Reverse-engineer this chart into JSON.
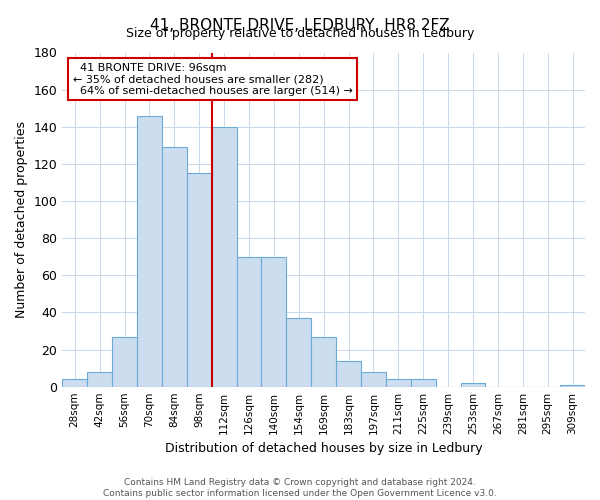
{
  "title": "41, BRONTE DRIVE, LEDBURY, HR8 2FZ",
  "subtitle": "Size of property relative to detached houses in Ledbury",
  "xlabel": "Distribution of detached houses by size in Ledbury",
  "ylabel": "Number of detached properties",
  "bar_labels": [
    "28sqm",
    "42sqm",
    "56sqm",
    "70sqm",
    "84sqm",
    "98sqm",
    "112sqm",
    "126sqm",
    "140sqm",
    "154sqm",
    "169sqm",
    "183sqm",
    "197sqm",
    "211sqm",
    "225sqm",
    "239sqm",
    "253sqm",
    "267sqm",
    "281sqm",
    "295sqm",
    "309sqm"
  ],
  "bar_values": [
    4,
    8,
    27,
    146,
    129,
    115,
    140,
    70,
    70,
    37,
    27,
    14,
    8,
    4,
    4,
    0,
    2,
    0,
    0,
    0,
    1
  ],
  "bar_color": "#ccddf0",
  "bar_edge_color": "#6aaad4",
  "ylim": [
    0,
    180
  ],
  "yticks": [
    0,
    20,
    40,
    60,
    80,
    100,
    120,
    140,
    160,
    180
  ],
  "vline_pos": 5.5,
  "vline_color": "#cc0000",
  "annotation_box_edge": "#cc0000",
  "marker_label": "41 BRONTE DRIVE: 96sqm",
  "pct_smaller": "35% of detached houses are smaller (282)",
  "pct_larger": "64% of semi-detached houses are larger (514)",
  "title_fontsize": 11,
  "subtitle_fontsize": 9,
  "footer_line1": "Contains HM Land Registry data © Crown copyright and database right 2024.",
  "footer_line2": "Contains public sector information licensed under the Open Government Licence v3.0."
}
